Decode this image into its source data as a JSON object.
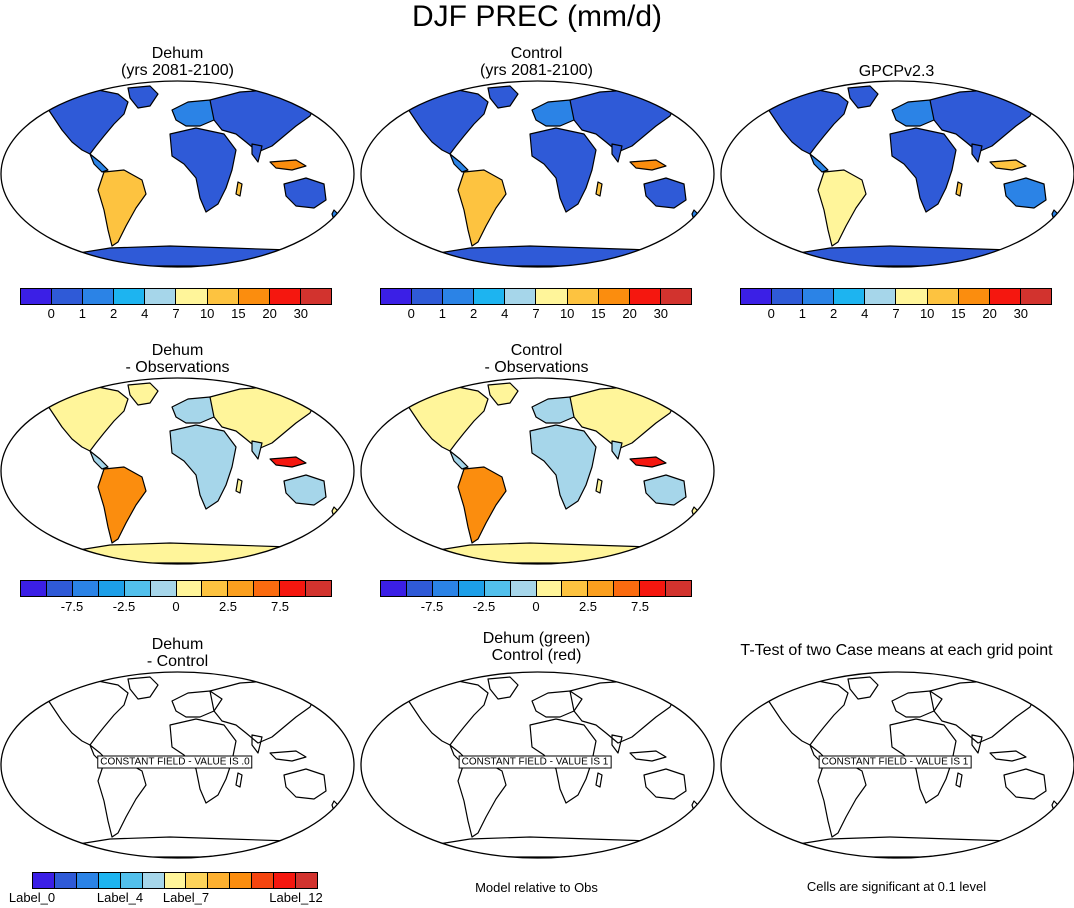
{
  "title": "DJF PREC (mm/d)",
  "palettes": {
    "absolute": [
      "#3b1fe6",
      "#2f5ad7",
      "#2b83e6",
      "#1db4f0",
      "#a6d6ea",
      "#fff59a",
      "#fdc340",
      "#fb8d0e",
      "#f5170f",
      "#d2332e"
    ],
    "difference": [
      "#3b1fe6",
      "#2f5ad7",
      "#2b83e6",
      "#1d9fe8",
      "#52c0ec",
      "#a6d6ea",
      "#fff59a",
      "#fdc340",
      "#fb9f1e",
      "#fb6b0f",
      "#f5170f",
      "#d2332e"
    ],
    "t_test": [
      "#3b1fe6",
      "#2f5ad7",
      "#2b83e6",
      "#1db4f0",
      "#52c0ec",
      "#a6d6ea",
      "#fff59a",
      "#fdd35a",
      "#fdb030",
      "#fb8d0e",
      "#f5450f",
      "#f5170f",
      "#d2332e"
    ]
  },
  "colorbar_labels": {
    "absolute": [
      "0",
      "1",
      "2",
      "4",
      "7",
      "10",
      "15",
      "20",
      "30"
    ],
    "difference": [
      "-7.5",
      "-2.5",
      "0",
      "2.5",
      "7.5"
    ],
    "t_test": [
      "Label_0",
      "Label_4",
      "Label_7",
      "Label_12"
    ]
  },
  "panels": {
    "dehum": {
      "line1": "Dehum",
      "line2": "(yrs 2081-2100)"
    },
    "control": {
      "line1": "Control",
      "line2": "(yrs 2081-2100)"
    },
    "obs": {
      "line1": "GPCPv2.3"
    },
    "dehum_minus_obs": {
      "line1": "Dehum",
      "line2": "- Observations"
    },
    "control_minus_obs": {
      "line1": "Control",
      "line2": "- Observations"
    },
    "dehum_minus_control": {
      "line1": "Dehum",
      "line2": "- Control",
      "constant_field": "CONSTANT FIELD - VALUE IS .0"
    },
    "relative": {
      "line1": "Dehum (green)",
      "line2": "Control (red)",
      "constant_field": "CONSTANT FIELD - VALUE IS 1",
      "note": "Model relative to Obs"
    },
    "ttest": {
      "line1": "T-Test of two Case means at each grid point",
      "constant_field": "CONSTANT FIELD - VALUE IS 1",
      "note": "Cells are significant at 0.1 level"
    }
  }
}
